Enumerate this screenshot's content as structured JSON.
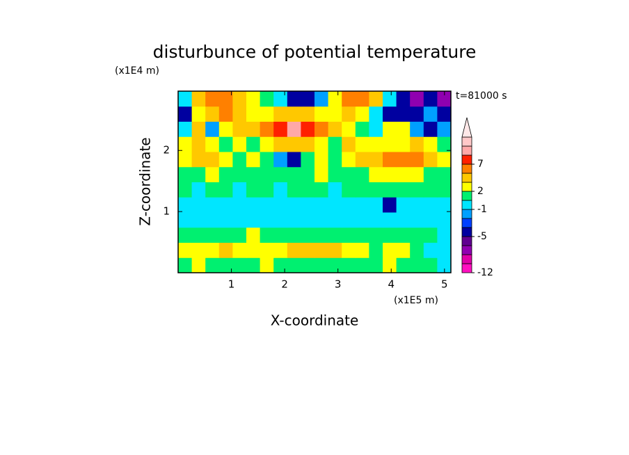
{
  "chart_data": {
    "type": "contour",
    "title": "disturbunce of potential temperature",
    "y_unit": "(x1E4 m)",
    "x_unit": "(x1E5 m)",
    "annotation": "t=81000 s",
    "xlabel": "X-coordinate",
    "ylabel": "Z-coordinate",
    "xlim": [
      0,
      5.12
    ],
    "ylim": [
      0,
      2.97
    ],
    "xticks": [
      1,
      2,
      3,
      4,
      5
    ],
    "yticks": [
      1,
      2
    ],
    "x": [
      0.128,
      0.384,
      0.64,
      0.896,
      1.152,
      1.408,
      1.664,
      1.92,
      2.176,
      2.432,
      2.688,
      2.944,
      3.2,
      3.456,
      3.712,
      3.968,
      4.224,
      4.48,
      4.736,
      4.992
    ],
    "z": [
      0.124,
      0.371,
      0.619,
      0.866,
      1.114,
      1.361,
      1.609,
      1.856,
      2.104,
      2.351,
      2.599,
      2.846
    ],
    "values": [
      [
        1.5,
        2.5,
        1.5,
        1.5,
        1.5,
        1.5,
        2.5,
        1.5,
        1.5,
        1.5,
        1.5,
        1.5,
        1.5,
        1.5,
        1.5,
        2.5,
        1.5,
        1.5,
        1.5,
        0
      ],
      [
        2.5,
        2.5,
        2.5,
        4,
        2.5,
        2.5,
        2.5,
        2.5,
        4,
        4,
        4,
        4,
        2.5,
        2.5,
        1.5,
        2.5,
        2.5,
        1.5,
        0,
        0
      ],
      [
        1.5,
        1.5,
        1.5,
        1.5,
        1.5,
        2.5,
        1.5,
        1.5,
        1.5,
        1.5,
        1.5,
        1.5,
        1.5,
        1.5,
        1.5,
        1.5,
        1.5,
        1.5,
        1.5,
        0
      ],
      [
        0,
        0,
        0,
        0,
        0,
        0,
        0,
        0,
        0,
        0,
        0,
        0,
        0,
        0,
        0,
        0,
        0,
        0,
        0,
        0
      ],
      [
        0,
        0,
        0,
        0,
        0,
        0,
        0,
        0,
        0,
        0,
        0,
        0,
        0,
        0,
        0,
        -4,
        0,
        0,
        0,
        0
      ],
      [
        1.5,
        0,
        1.5,
        1.5,
        0,
        1.5,
        1.5,
        0,
        1.5,
        1.5,
        1.5,
        0,
        1.5,
        1.5,
        1.5,
        1.5,
        1.5,
        1.5,
        1.5,
        1.5
      ],
      [
        1.5,
        1.5,
        2.5,
        1.5,
        1.5,
        1.5,
        1.5,
        1.5,
        1.5,
        1.5,
        2.5,
        1.5,
        1.5,
        1.5,
        2.5,
        2.5,
        2.5,
        2.5,
        1.5,
        1.5
      ],
      [
        2.5,
        4,
        4,
        2.5,
        1.5,
        2.5,
        1.5,
        -1.5,
        -4,
        1.5,
        2.5,
        1.5,
        2.5,
        4,
        4,
        6,
        6,
        6,
        4,
        2.5
      ],
      [
        2.5,
        4,
        2.5,
        1.5,
        2.5,
        1.5,
        2.5,
        4,
        4,
        4,
        2.5,
        1.5,
        4,
        2.5,
        2.5,
        2.5,
        2.5,
        4,
        2.5,
        1.5
      ],
      [
        0,
        4,
        -1.5,
        2.5,
        4,
        4,
        6,
        8,
        10,
        8,
        6,
        4,
        2.5,
        1.5,
        0,
        2.5,
        2.5,
        -1.5,
        -4,
        -1.5
      ],
      [
        -4,
        2.5,
        4,
        6,
        4,
        2.5,
        2.5,
        4,
        4,
        4,
        2.5,
        2.5,
        4,
        2.5,
        0,
        -4,
        -4,
        -4,
        -1.5,
        -4
      ],
      [
        0,
        4,
        6,
        6,
        4,
        2.5,
        1.5,
        0,
        -4,
        -4,
        -1.5,
        2.5,
        6,
        6,
        4,
        0,
        -4,
        -7,
        -4,
        -7
      ]
    ],
    "colorbar": {
      "levels": [
        -12,
        -10,
        -8,
        -6,
        -5,
        -3,
        -2,
        -1,
        1,
        2,
        3,
        5,
        7,
        9,
        11,
        13
      ],
      "colors": [
        "#ff10c0",
        "#e000a8",
        "#9000b0",
        "#600090",
        "#0000a0",
        "#0040ff",
        "#00a0ff",
        "#00e6ff",
        "#00f070",
        "#ffff00",
        "#ffc800",
        "#ff8000",
        "#ff2000",
        "#ffa8a8",
        "#ffc8c8"
      ],
      "extend_color": "#ffe8e8",
      "ticks": [
        -12,
        -5,
        -1,
        2,
        7
      ]
    }
  }
}
